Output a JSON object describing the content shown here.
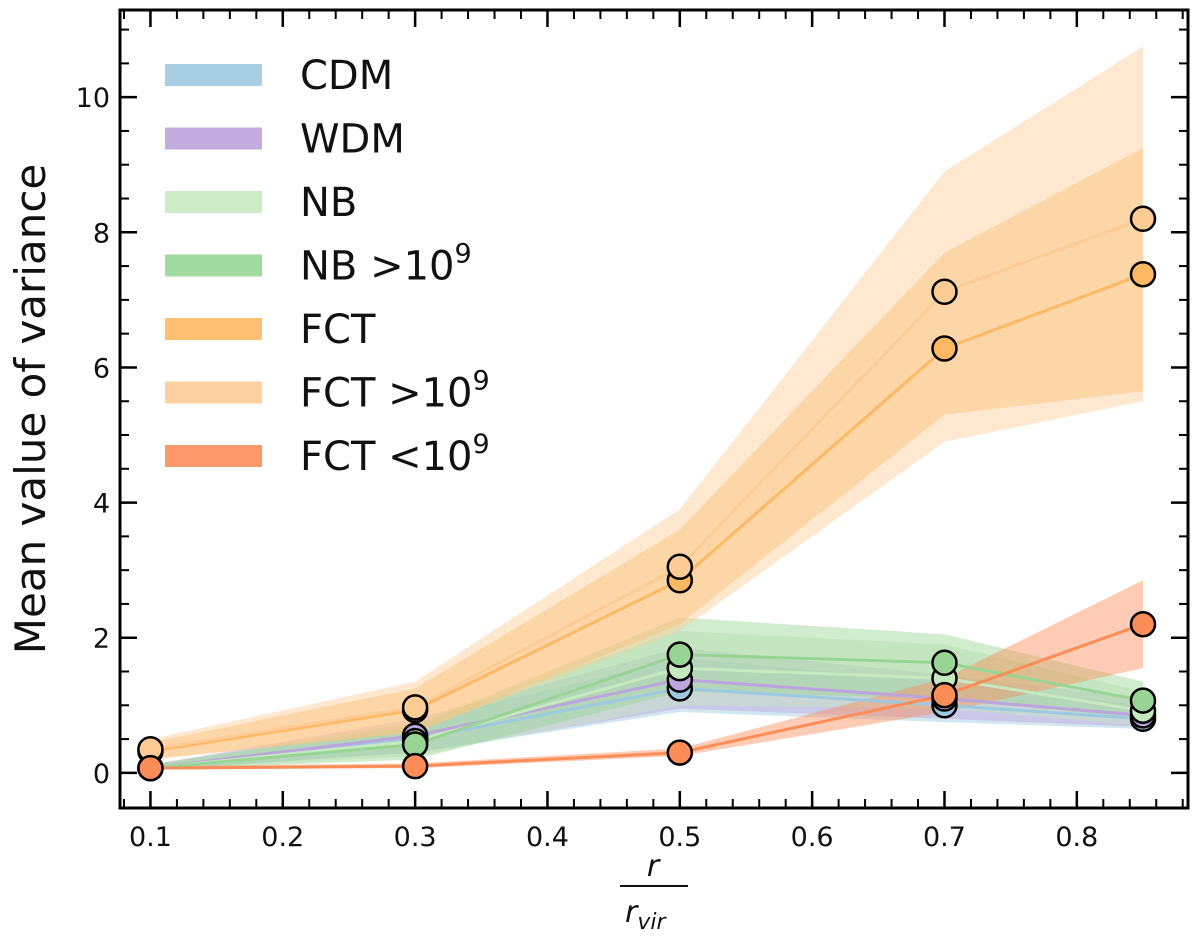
{
  "chart_data": {
    "type": "line",
    "title": "",
    "xlabel_numerator": "r",
    "xlabel_denominator": "r",
    "xlabel_denominator_sub": "vir",
    "ylabel": "Mean value of variance",
    "xlim": [
      0.077,
      0.884
    ],
    "ylim": [
      -0.52,
      11.29
    ],
    "xticks": [
      0.1,
      0.2,
      0.3,
      0.4,
      0.5,
      0.6,
      0.7,
      0.8
    ],
    "xtick_labels": [
      "0.1",
      "0.2",
      "0.3",
      "0.4",
      "0.5",
      "0.6",
      "0.7",
      "0.8"
    ],
    "yticks": [
      0,
      2,
      4,
      6,
      8,
      10
    ],
    "ytick_labels": [
      "0",
      "2",
      "4",
      "6",
      "8",
      "10"
    ],
    "x_minor_step": 0.02,
    "y_minor_step": 0.5,
    "grid": false,
    "legend_placement": "top-left",
    "x": [
      0.1,
      0.3,
      0.5,
      0.7,
      0.85
    ],
    "series": [
      {
        "name": "CDM",
        "label_main": "CDM",
        "label_sup": "",
        "color": "#9ecae1",
        "values": [
          0.07,
          0.5,
          1.25,
          1.0,
          0.8
        ],
        "lower": [
          0.04,
          0.3,
          0.9,
          0.75,
          0.65
        ],
        "upper": [
          0.12,
          0.75,
          1.7,
          1.35,
          1.0
        ]
      },
      {
        "name": "WDM",
        "label_main": "WDM",
        "label_sup": "",
        "color": "#bca4dc",
        "values": [
          0.07,
          0.55,
          1.38,
          1.1,
          0.85
        ],
        "lower": [
          0.04,
          0.3,
          0.95,
          0.8,
          0.68
        ],
        "upper": [
          0.12,
          0.8,
          1.85,
          1.45,
          1.1
        ]
      },
      {
        "name": "NB",
        "label_main": "NB",
        "label_sup": "",
        "color": "#c7e9c0",
        "values": [
          0.07,
          0.47,
          1.55,
          1.4,
          0.92
        ],
        "lower": [
          0.04,
          0.25,
          1.0,
          0.95,
          0.7
        ],
        "upper": [
          0.12,
          0.75,
          2.1,
          1.9,
          1.2
        ]
      },
      {
        "name": "NB >10^9",
        "label_main": "NB >10",
        "label_sup": "9",
        "color": "#98d594",
        "values": [
          0.07,
          0.42,
          1.75,
          1.63,
          1.07
        ],
        "lower": [
          0.04,
          0.2,
          1.2,
          1.1,
          0.8
        ],
        "upper": [
          0.12,
          0.7,
          2.3,
          2.05,
          1.35
        ]
      },
      {
        "name": "FCT",
        "label_main": "FCT",
        "label_sup": "",
        "color": "#fdb863",
        "values": [
          0.32,
          0.93,
          2.85,
          6.28,
          7.38
        ],
        "lower": [
          0.2,
          0.6,
          2.2,
          5.3,
          5.65
        ],
        "upper": [
          0.45,
          1.25,
          3.6,
          7.7,
          9.25
        ]
      },
      {
        "name": "FCT >10^9",
        "label_main": "FCT >10",
        "label_sup": "9",
        "color": "#fdcc95",
        "values": [
          0.35,
          0.97,
          3.05,
          7.12,
          8.2
        ],
        "lower": [
          0.2,
          0.6,
          2.1,
          4.9,
          5.5
        ],
        "upper": [
          0.5,
          1.35,
          3.9,
          8.9,
          10.75
        ]
      },
      {
        "name": "FCT <10^9",
        "label_main": "FCT <10",
        "label_sup": "9",
        "color": "#fc8d59",
        "values": [
          0.07,
          0.1,
          0.3,
          1.15,
          2.2
        ],
        "lower": [
          0.05,
          0.07,
          0.25,
          0.9,
          1.55
        ],
        "upper": [
          0.1,
          0.14,
          0.36,
          1.4,
          2.85
        ]
      }
    ]
  }
}
